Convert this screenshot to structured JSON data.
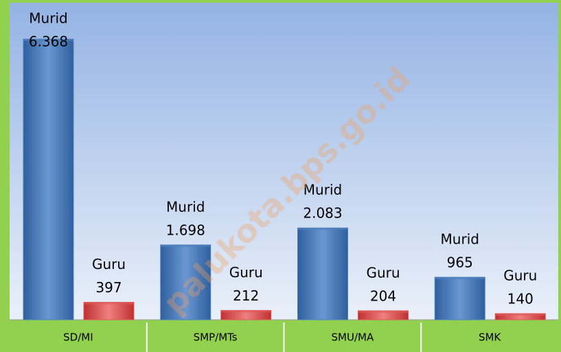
{
  "chart_data": {
    "type": "bar",
    "categories": [
      "SD/MI",
      "SMP/MTs",
      "SMU/MA",
      "SMK"
    ],
    "series": [
      {
        "name": "Murid",
        "color": "#4f81bd",
        "values": [
          6368,
          1698,
          2083,
          965
        ],
        "value_labels": [
          "6.368",
          "1.698",
          "2.083",
          "965"
        ]
      },
      {
        "name": "Guru",
        "color": "#e05a5a",
        "values": [
          397,
          212,
          204,
          140
        ],
        "value_labels": [
          "397",
          "212",
          "204",
          "140"
        ]
      }
    ],
    "watermark": "palukota.bps.go.id"
  }
}
